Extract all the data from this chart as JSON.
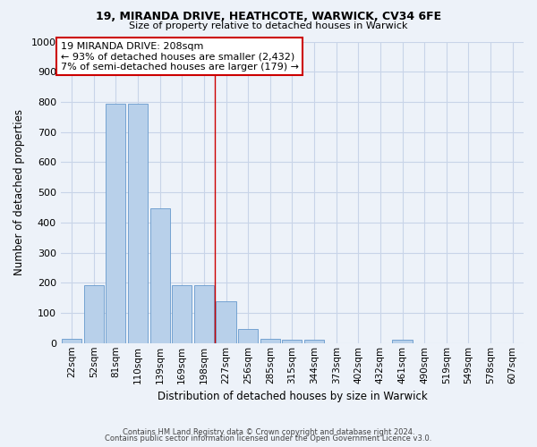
{
  "title_line1": "19, MIRANDA DRIVE, HEATHCOTE, WARWICK, CV34 6FE",
  "title_line2": "Size of property relative to detached houses in Warwick",
  "xlabel": "Distribution of detached houses by size in Warwick",
  "ylabel": "Number of detached properties",
  "footer_line1": "Contains HM Land Registry data © Crown copyright and database right 2024.",
  "footer_line2": "Contains public sector information licensed under the Open Government Licence v3.0.",
  "bar_labels": [
    "22sqm",
    "52sqm",
    "81sqm",
    "110sqm",
    "139sqm",
    "169sqm",
    "198sqm",
    "227sqm",
    "256sqm",
    "285sqm",
    "315sqm",
    "344sqm",
    "373sqm",
    "402sqm",
    "432sqm",
    "461sqm",
    "490sqm",
    "519sqm",
    "549sqm",
    "578sqm",
    "607sqm"
  ],
  "bar_values": [
    15,
    193,
    793,
    793,
    447,
    193,
    193,
    140,
    48,
    13,
    10,
    10,
    0,
    0,
    0,
    10,
    0,
    0,
    0,
    0,
    0
  ],
  "bar_color": "#b8d0ea",
  "bar_edge_color": "#6699cc",
  "ylim": [
    0,
    1000
  ],
  "yticks": [
    0,
    100,
    200,
    300,
    400,
    500,
    600,
    700,
    800,
    900,
    1000
  ],
  "grid_color": "#c8d4e8",
  "annotation_text": "19 MIRANDA DRIVE: 208sqm\n← 93% of detached houses are smaller (2,432)\n7% of semi-detached houses are larger (179) →",
  "annotation_box_color": "#ffffff",
  "annotation_border_color": "#cc0000",
  "vline_color": "#cc0000",
  "vline_x": 6.5,
  "background_color": "#edf2f9"
}
